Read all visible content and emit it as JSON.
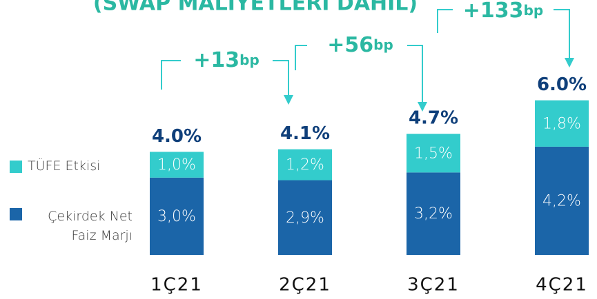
{
  "chart_data": {
    "type": "stacked_bar",
    "title": "(SWAP MALİYETLERİ DAHİL)",
    "categories": [
      "1Ç21",
      "2Ç21",
      "3Ç21",
      "4Ç21"
    ],
    "series": [
      {
        "name": "Çekirdek Net Faiz Marjı",
        "color": "#1b65a8",
        "values": [
          3.0,
          2.9,
          3.2,
          4.2
        ],
        "value_labels": [
          "3,0%",
          "2,9%",
          "3,2%",
          "4,2%"
        ]
      },
      {
        "name": "TÜFE Etkisi",
        "color": "#33cccc",
        "values": [
          1.0,
          1.2,
          1.5,
          1.8
        ],
        "value_labels": [
          "1,0%",
          "1,2%",
          "1,5%",
          "1,8%"
        ]
      }
    ],
    "totals": [
      4.0,
      4.1,
      4.7,
      6.0
    ],
    "total_labels": [
      "4.0%",
      "4.1%",
      "4.7%",
      "6.0%"
    ],
    "annotations": [
      {
        "text": "+13",
        "unit": "bp"
      },
      {
        "text": "+56",
        "unit": "bp"
      },
      {
        "text": "+133",
        "unit": "bp"
      }
    ]
  }
}
